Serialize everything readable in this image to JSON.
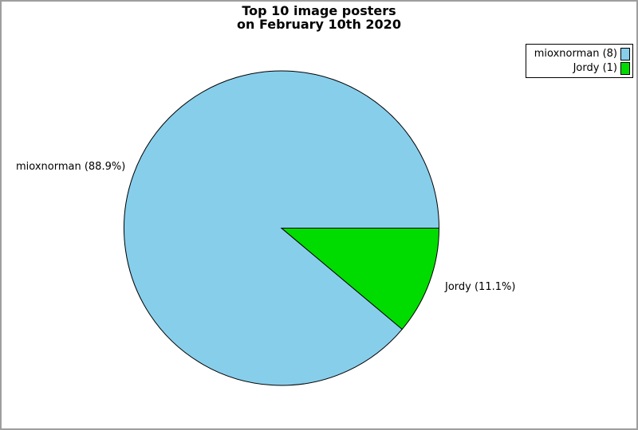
{
  "header": {
    "title_line1": "Top 10 image posters",
    "title_line2": "on February 10th 2020"
  },
  "chart_data": {
    "type": "pie",
    "title": "Top 10 image posters on February 10th 2020",
    "series": [
      {
        "name": "mioxnorman",
        "value": 8,
        "percent": 88.9,
        "color": "#87CEEB",
        "slice_label": "mioxnorman (88.9%)",
        "legend_label": "mioxnorman (8)"
      },
      {
        "name": "Jordy",
        "value": 1,
        "percent": 11.1,
        "color": "#00DC00",
        "slice_label": "Jordy (11.1%)",
        "legend_label": "Jordy (1)"
      }
    ],
    "total": 9,
    "start_angle_deg": 40,
    "direction": "clockwise",
    "slice_stroke": "#000000",
    "legend_position": "top-right",
    "background": "#FFFFFF",
    "page_border_color": "#9E9E9E"
  }
}
